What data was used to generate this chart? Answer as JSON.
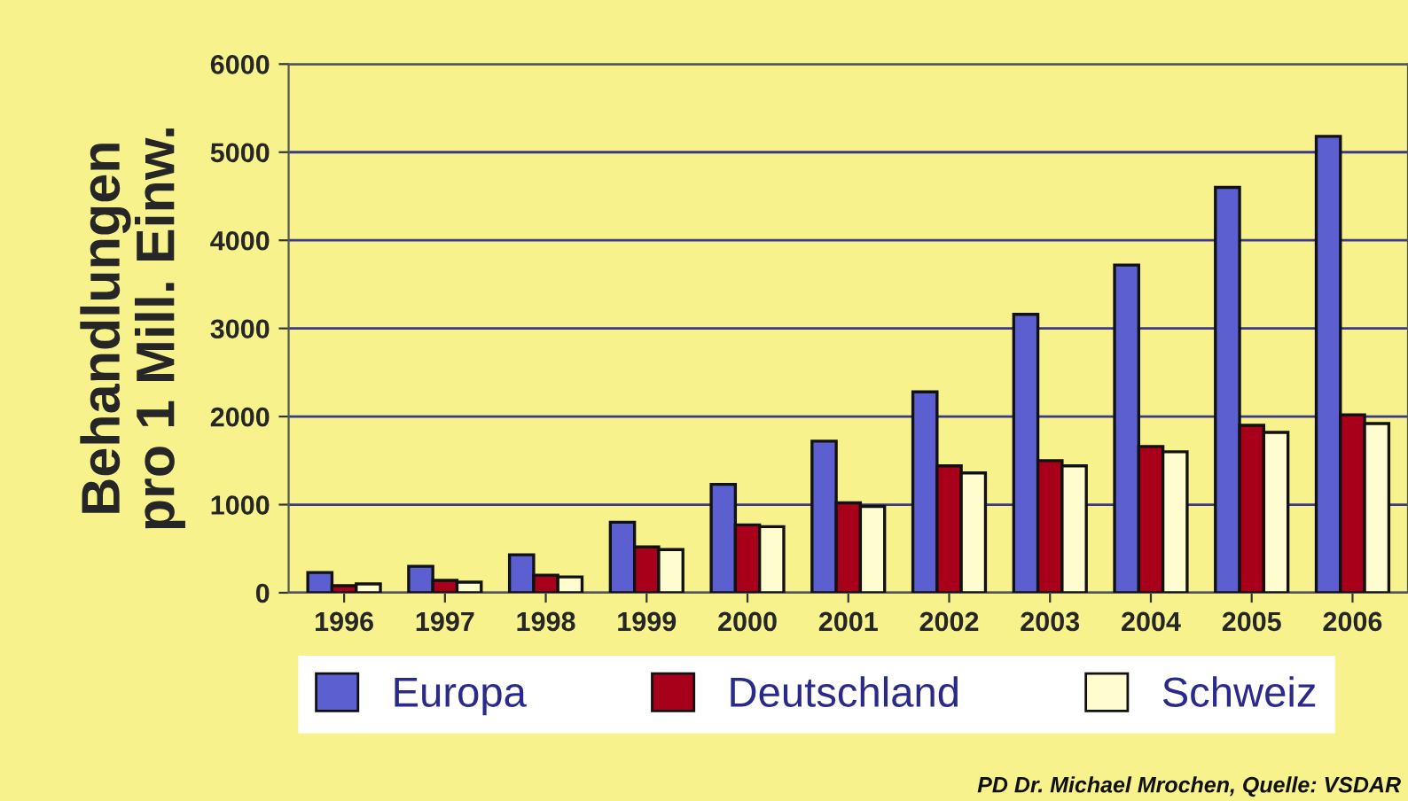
{
  "chart_data": {
    "type": "bar",
    "ylabel": "Behandlungen\npro 1 Mill. Einw.",
    "categories": [
      "1996",
      "1997",
      "1998",
      "1999",
      "2000",
      "2001",
      "2002",
      "2003",
      "2004",
      "2005",
      "2006"
    ],
    "series": [
      {
        "name": "Europa",
        "color": "#5b5fcf",
        "values": [
          230,
          300,
          430,
          800,
          1230,
          1720,
          2280,
          3160,
          3720,
          4600,
          5180
        ]
      },
      {
        "name": "Deutschland",
        "color": "#a8001a",
        "values": [
          80,
          140,
          200,
          520,
          770,
          1020,
          1440,
          1500,
          1660,
          1900,
          2020
        ]
      },
      {
        "name": "Schweiz",
        "color": "#fffcd0",
        "values": [
          100,
          120,
          180,
          490,
          750,
          980,
          1360,
          1440,
          1600,
          1820,
          1920
        ]
      }
    ],
    "ylim": [
      0,
      6000
    ],
    "yticks": [
      0,
      1000,
      2000,
      3000,
      4000,
      5000,
      6000
    ],
    "grid": "y",
    "legend": "bottom",
    "annotations": [
      "PD Dr. Michael Mrochen, Quelle: VSDAR"
    ]
  }
}
